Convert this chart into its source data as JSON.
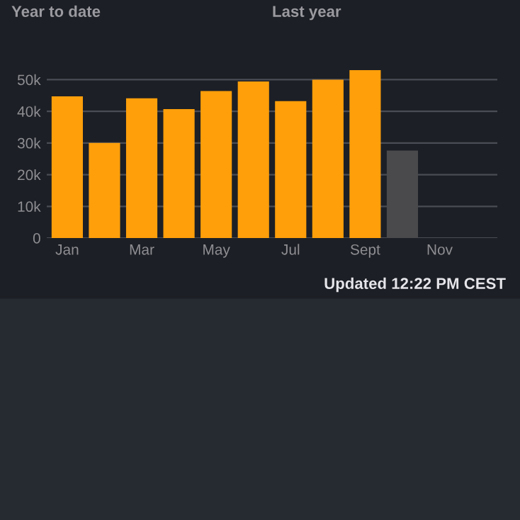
{
  "chart_data": {
    "type": "bar",
    "categories": [
      "Jan",
      null,
      "Mar",
      null,
      "May",
      null,
      "Jul",
      null,
      "Sept",
      null,
      "Nov",
      null
    ],
    "values": [
      44700,
      30000,
      44100,
      40700,
      46400,
      49400,
      43200,
      50000,
      53000,
      27600,
      null,
      null
    ],
    "colors": [
      "#ff9f0a",
      "#ff9f0a",
      "#ff9f0a",
      "#ff9f0a",
      "#ff9f0a",
      "#ff9f0a",
      "#ff9f0a",
      "#ff9f0a",
      "#ff9f0a",
      "#4a4a4c",
      "#ff9f0a",
      "#ff9f0a"
    ],
    "ylim": [
      0,
      53000
    ],
    "yticks": [
      0,
      {
        "value": 10000,
        "label": "10k"
      },
      {
        "value": 20000,
        "label": "20k"
      },
      {
        "value": 30000,
        "label": "30k"
      },
      {
        "value": 40000,
        "label": "40k"
      },
      {
        "value": 50000,
        "label": "50k"
      }
    ],
    "grid": "y",
    "legend": false,
    "annotations": [
      "Year to date",
      "Last year",
      "Updated 12:22 PM CEST"
    ]
  }
}
